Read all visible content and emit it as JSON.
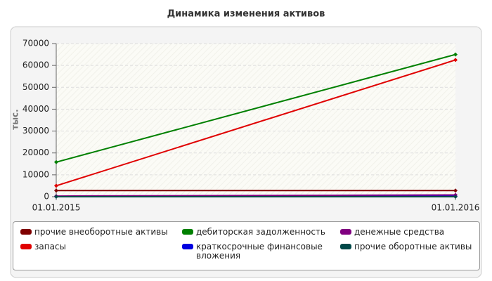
{
  "chart_data": {
    "type": "line",
    "title": "Динамика изменения активов",
    "y_label": "тыс.",
    "categories": [
      "01.01.2015",
      "01.01.2016"
    ],
    "ylim": [
      0,
      70000
    ],
    "yticks": [
      0,
      10000,
      20000,
      30000,
      40000,
      50000,
      60000,
      70000
    ],
    "grid": true,
    "series": [
      {
        "name": "прочие внеоборотные активы",
        "color": "#7f0000",
        "values": [
          2800,
          2800
        ]
      },
      {
        "name": "запасы",
        "color": "#e00000",
        "values": [
          5000,
          62500
        ]
      },
      {
        "name": "дебиторская задолженность",
        "color": "#008000",
        "values": [
          15800,
          65000
        ]
      },
      {
        "name": "краткосрочные финансовые вложения",
        "color": "#0000e0",
        "values": [
          100,
          200
        ]
      },
      {
        "name": "денежные средства",
        "color": "#800080",
        "values": [
          300,
          800
        ]
      },
      {
        "name": "прочие оборотные активы",
        "color": "#004848",
        "values": [
          0,
          0
        ]
      }
    ]
  }
}
